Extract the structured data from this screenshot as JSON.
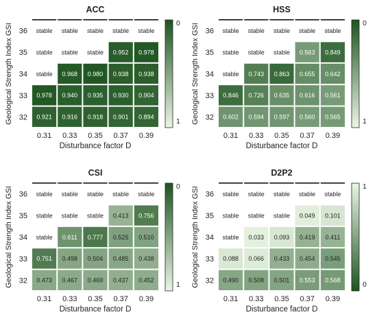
{
  "chart_data": [
    {
      "type": "heatmap",
      "title": "ACC",
      "xlabel": "Disturbance factor D",
      "ylabel": "Geological Strength Index GSI",
      "x": [
        "0.31",
        "0.33",
        "0.35",
        "0.37",
        "0.39"
      ],
      "y": [
        "36",
        "35",
        "34",
        "33",
        "32"
      ],
      "cells": [
        [
          "stable",
          "stable",
          "stable",
          "stable",
          "stable"
        ],
        [
          "stable",
          "stable",
          "stable",
          "0.952",
          "0.978"
        ],
        [
          "stable",
          "0.968",
          "0.980",
          "0.938",
          "0.938"
        ],
        [
          "0.978",
          "0.940",
          "0.935",
          "0.930",
          "0.904"
        ],
        [
          "0.921",
          "0.916",
          "0.918",
          "0.901",
          "0.894"
        ]
      ],
      "colorbar": {
        "ticks": [
          "0",
          "1"
        ],
        "range": [
          0,
          1
        ],
        "reversed": false
      }
    },
    {
      "type": "heatmap",
      "title": "HSS",
      "xlabel": "Disturbance factor D",
      "ylabel": "Geological Strength Index GSI",
      "x": [
        "0.31",
        "0.33",
        "0.35",
        "0.37",
        "0.39"
      ],
      "y": [
        "36",
        "35",
        "34",
        "33",
        "32"
      ],
      "cells": [
        [
          "stable",
          "stable",
          "stable",
          "stable",
          "stable"
        ],
        [
          "stable",
          "stable",
          "stable",
          "0.563",
          "0.849"
        ],
        [
          "stable",
          "0.743",
          "0.863",
          "0.655",
          "0.642"
        ],
        [
          "0.846",
          "0.726",
          "0.635",
          "0.616",
          "0.561"
        ],
        [
          "0.602",
          "0.594",
          "0.597",
          "0.560",
          "0.565"
        ]
      ],
      "colorbar": {
        "ticks": [
          "0",
          "1"
        ],
        "range": [
          0,
          1
        ],
        "reversed": false
      }
    },
    {
      "type": "heatmap",
      "title": "CSI",
      "xlabel": "Disturbance factor D",
      "ylabel": "Geological Strength Index GSI",
      "x": [
        "0.31",
        "0.33",
        "0.35",
        "0.37",
        "0.39"
      ],
      "y": [
        "36",
        "35",
        "34",
        "33",
        "32"
      ],
      "cells": [
        [
          "stable",
          "stable",
          "stable",
          "stable",
          "stable"
        ],
        [
          "stable",
          "stable",
          "stable",
          "0.413",
          "0.756"
        ],
        [
          "stable",
          "0.611",
          "0.777",
          "0.525",
          "0.510"
        ],
        [
          "0.751",
          "0.498",
          "0.504",
          "0.485",
          "0.438"
        ],
        [
          "0.473",
          "0.467",
          "0.469",
          "0.437",
          "0.452"
        ]
      ],
      "colorbar": {
        "ticks": [
          "0",
          "1"
        ],
        "range": [
          0,
          1
        ],
        "reversed": false
      }
    },
    {
      "type": "heatmap",
      "title": "D2P2",
      "xlabel": "Disturbance factor D",
      "ylabel": "Geological Strength Index GSI",
      "x": [
        "0.31",
        "0.33",
        "0.35",
        "0.37",
        "0.39"
      ],
      "y": [
        "36",
        "35",
        "34",
        "33",
        "32"
      ],
      "cells": [
        [
          "stable",
          "stable",
          "stable",
          "stable",
          "stable"
        ],
        [
          "stable",
          "stable",
          "stable",
          "0.049",
          "0.101"
        ],
        [
          "stable",
          "0.033",
          "0.093",
          "0.419",
          "0.411"
        ],
        [
          "0.088",
          "0.066",
          "0.433",
          "0.454",
          "0.545"
        ],
        [
          "0.490",
          "0.508",
          "0.501",
          "0.553",
          "0.568"
        ]
      ],
      "colorbar": {
        "ticks": [
          "1",
          "0"
        ],
        "range": [
          0,
          1
        ],
        "reversed": true
      }
    }
  ]
}
